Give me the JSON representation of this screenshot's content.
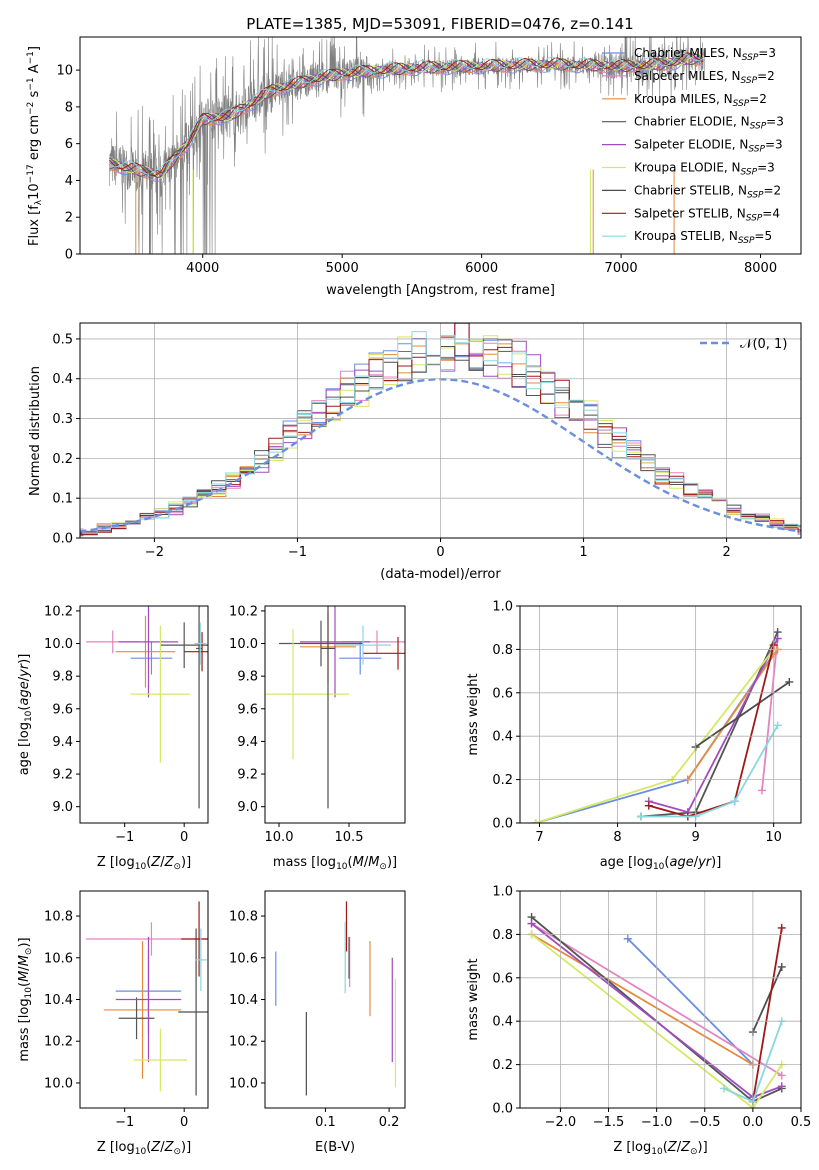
{
  "figure": {
    "title": "PLATE=1385, MJD=53091, FIBERID=0476, z=0.141"
  },
  "colors": {
    "Chabrier MILES": "#6a8ee0",
    "Salpeter MILES": "#e584c0",
    "Kroupa MILES": "#e58a3e",
    "Chabrier ELODIE": "#555555",
    "Salpeter ELODIE": "#a04cc0",
    "Kroupa ELODIE": "#d6e866",
    "Chabrier STELIB": "#4d4d4d",
    "Salpeter STELIB": "#a01818",
    "Kroupa STELIB": "#88d8e0",
    "data": "#808080",
    "normal": "#6a8ee0"
  },
  "chart_data": [
    {
      "id": "spectrum",
      "type": "line",
      "title": "PLATE=1385, MJD=53091, FIBERID=0476, z=0.141",
      "xlabel": "wavelength [Angstrom, rest frame]",
      "ylabel": "Flux [f_λ10^-17 erg cm^-2 s^-1 A^-1]",
      "xlim": [
        3120,
        8290
      ],
      "ylim": [
        0,
        11.8
      ],
      "xticks": [
        4000,
        5000,
        6000,
        7000,
        8000
      ],
      "yticks": [
        0,
        2,
        4,
        6,
        8,
        10
      ],
      "legend_position": "top-right",
      "legend": [
        {
          "name": "Chabrier MILES",
          "nssp": "3"
        },
        {
          "name": "Salpeter MILES",
          "nssp": "2"
        },
        {
          "name": "Kroupa MILES",
          "nssp": "2"
        },
        {
          "name": "Chabrier ELODIE",
          "nssp": "3"
        },
        {
          "name": "Salpeter ELODIE",
          "nssp": "3"
        },
        {
          "name": "Kroupa ELODIE",
          "nssp": "3"
        },
        {
          "name": "Chabrier STELIB",
          "nssp": "2"
        },
        {
          "name": "Salpeter STELIB",
          "nssp": "4"
        },
        {
          "name": "Kroupa STELIB",
          "nssp": "5"
        }
      ],
      "continuum": [
        [
          3330,
          4.9
        ],
        [
          3500,
          4.6
        ],
        [
          3700,
          4.3
        ],
        [
          3900,
          6.1
        ],
        [
          4000,
          7.3
        ],
        [
          4200,
          7.5
        ],
        [
          4500,
          8.9
        ],
        [
          4800,
          9.5
        ],
        [
          5000,
          9.8
        ],
        [
          5500,
          10.1
        ],
        [
          6000,
          10.2
        ],
        [
          6500,
          10.3
        ],
        [
          7000,
          10.2
        ],
        [
          7300,
          10.3
        ],
        [
          7500,
          10.6
        ]
      ]
    },
    {
      "id": "residuals",
      "type": "line",
      "xlabel": "(data-model)/error",
      "ylabel": "Normed distribution",
      "xlim": [
        -2.52,
        2.52
      ],
      "ylim": [
        0,
        0.54
      ],
      "xticks": [
        -2,
        -1,
        0,
        1,
        2
      ],
      "yticks": [
        0.0,
        0.1,
        0.2,
        0.3,
        0.4,
        0.5
      ],
      "grid": true,
      "legend_position": "top-right",
      "legend": [
        "𝒩(0, 1)"
      ],
      "normal_curve": {
        "mean": 0,
        "sigma": 1
      }
    },
    {
      "id": "age-vs-Z",
      "type": "scatter",
      "xlabel": "Z [log10(Z/Z⊙)]",
      "ylabel": "age [log10(age/yr)]",
      "xlim": [
        -1.75,
        0.4
      ],
      "ylim": [
        8.9,
        10.23
      ],
      "xticks": [
        -1,
        0
      ],
      "yticks": [
        9.0,
        9.2,
        9.4,
        9.6,
        9.8,
        10.0,
        10.2
      ],
      "points": [
        {
          "series": "Chabrier MILES",
          "x": -0.55,
          "y": 9.91,
          "xerr": 0.35,
          "yerr": 0.1
        },
        {
          "series": "Salpeter MILES",
          "x": -1.2,
          "y": 10.01,
          "xerr": 0.45,
          "yerr": 0.07
        },
        {
          "series": "Kroupa MILES",
          "x": -0.65,
          "y": 9.95,
          "xerr": 0.5,
          "yerr": 0.22
        },
        {
          "series": "Chabrier ELODIE",
          "x": 0.0,
          "y": 9.99,
          "xerr": 0.4,
          "yerr": 0.14
        },
        {
          "series": "Salpeter ELODIE",
          "x": -0.6,
          "y": 10.01,
          "xerr": 0.5,
          "yerr": 0.34
        },
        {
          "series": "Kroupa ELODIE",
          "x": -0.4,
          "y": 9.69,
          "xerr": 0.5,
          "yerr": 0.42
        },
        {
          "series": "Chabrier STELIB",
          "x": 0.25,
          "y": 9.97,
          "xerr": 0.05,
          "yerr": 0.98
        },
        {
          "series": "Salpeter STELIB",
          "x": 0.3,
          "y": 9.95,
          "xerr": 0.3,
          "yerr": 0.12
        },
        {
          "series": "Kroupa STELIB",
          "x": 0.27,
          "y": 10.0,
          "xerr": 0.1,
          "yerr": 0.13
        }
      ]
    },
    {
      "id": "age-vs-mass",
      "type": "scatter",
      "xlabel": "mass [log10(M/M⊙)]",
      "xlim": [
        9.9,
        10.9
      ],
      "ylim": [
        8.9,
        10.23
      ],
      "xticks": [
        10.0,
        10.5
      ],
      "yticks": [
        9.0,
        9.2,
        9.4,
        9.6,
        9.8,
        10.0,
        10.2
      ],
      "points": [
        {
          "series": "Chabrier MILES",
          "x": 10.58,
          "y": 9.91,
          "xerr": 0.15,
          "yerr": 0.1
        },
        {
          "series": "Salpeter MILES",
          "x": 10.7,
          "y": 10.01,
          "xerr": 0.25,
          "yerr": 0.07
        },
        {
          "series": "Kroupa MILES",
          "x": 10.35,
          "y": 9.98,
          "xerr": 0.2,
          "yerr": 0.22
        },
        {
          "series": "Chabrier ELODIE",
          "x": 10.3,
          "y": 10.0,
          "xerr": 0.3,
          "yerr": 0.14
        },
        {
          "series": "Salpeter ELODIE",
          "x": 10.4,
          "y": 10.01,
          "xerr": 0.25,
          "yerr": 0.34
        },
        {
          "series": "Kroupa ELODIE",
          "x": 10.1,
          "y": 9.69,
          "xerr": 0.4,
          "yerr": 0.4
        },
        {
          "series": "Chabrier STELIB",
          "x": 10.35,
          "y": 9.97,
          "xerr": 0.05,
          "yerr": 0.98
        },
        {
          "series": "Salpeter STELIB",
          "x": 10.85,
          "y": 9.94,
          "xerr": 0.25,
          "yerr": 0.1
        },
        {
          "series": "Kroupa STELIB",
          "x": 10.6,
          "y": 9.99,
          "xerr": 0.2,
          "yerr": 0.12
        }
      ]
    },
    {
      "id": "mass-weight-vs-age",
      "type": "line",
      "xlabel": "age [log10(age/yr)]",
      "ylabel": "mass weight",
      "xlim": [
        6.75,
        10.35
      ],
      "ylim": [
        0,
        1.0
      ],
      "xticks": [
        7,
        8,
        9,
        10
      ],
      "yticks": [
        0.0,
        0.2,
        0.4,
        0.6,
        0.8,
        1.0
      ],
      "grid": true,
      "series": [
        {
          "name": "Chabrier MILES",
          "points": [
            [
              6.95,
              0.0
            ],
            [
              8.9,
              0.2
            ],
            [
              10.0,
              0.78
            ]
          ]
        },
        {
          "name": "Salpeter MILES",
          "points": [
            [
              9.85,
              0.15
            ],
            [
              10.05,
              0.85
            ]
          ]
        },
        {
          "name": "Kroupa MILES",
          "points": [
            [
              8.9,
              0.2
            ],
            [
              10.05,
              0.8
            ]
          ]
        },
        {
          "name": "Chabrier ELODIE",
          "points": [
            [
              8.3,
              0.03
            ],
            [
              9.0,
              0.05
            ],
            [
              10.05,
              0.88
            ]
          ]
        },
        {
          "name": "Salpeter ELODIE",
          "points": [
            [
              8.4,
              0.1
            ],
            [
              8.9,
              0.05
            ],
            [
              10.05,
              0.85
            ]
          ]
        },
        {
          "name": "Kroupa ELODIE",
          "points": [
            [
              6.95,
              0.0
            ],
            [
              8.7,
              0.2
            ],
            [
              10.0,
              0.8
            ]
          ]
        },
        {
          "name": "Chabrier STELIB",
          "points": [
            [
              9.0,
              0.35
            ],
            [
              10.2,
              0.65
            ]
          ]
        },
        {
          "name": "Salpeter STELIB",
          "points": [
            [
              8.4,
              0.08
            ],
            [
              8.9,
              0.03
            ],
            [
              9.5,
              0.1
            ],
            [
              10.0,
              0.82
            ]
          ]
        },
        {
          "name": "Kroupa STELIB",
          "points": [
            [
              8.3,
              0.03
            ],
            [
              9.0,
              0.03
            ],
            [
              9.5,
              0.1
            ],
            [
              10.05,
              0.45
            ]
          ]
        }
      ]
    },
    {
      "id": "mass-vs-Z",
      "type": "scatter",
      "xlabel": "Z [log10(Z/Z⊙)]",
      "ylabel": "mass [log10(M/M⊙)]",
      "xlim": [
        -1.75,
        0.4
      ],
      "ylim": [
        9.88,
        10.92
      ],
      "xticks": [
        -1,
        0
      ],
      "yticks": [
        10.0,
        10.2,
        10.4,
        10.6,
        10.8
      ],
      "points": [
        {
          "series": "Chabrier MILES",
          "x": -0.6,
          "y": 10.44,
          "xerr": 0.55,
          "yerr": 0.2
        },
        {
          "series": "Salpeter MILES",
          "x": -0.55,
          "y": 10.69,
          "xerr": 1.1,
          "yerr": 0.08
        },
        {
          "series": "Kroupa MILES",
          "x": -0.7,
          "y": 10.35,
          "xerr": 0.65,
          "yerr": 0.33
        },
        {
          "series": "Chabrier ELODIE",
          "x": -0.8,
          "y": 10.31,
          "xerr": 0.3,
          "yerr": 0.1
        },
        {
          "series": "Salpeter ELODIE",
          "x": -0.6,
          "y": 10.4,
          "xerr": 0.55,
          "yerr": 0.3
        },
        {
          "series": "Kroupa ELODIE",
          "x": -0.4,
          "y": 10.11,
          "xerr": 0.45,
          "yerr": 0.15
        },
        {
          "series": "Chabrier STELIB",
          "x": 0.2,
          "y": 10.34,
          "xerr": 0.3,
          "yerr": 0.4
        },
        {
          "series": "Salpeter STELIB",
          "x": 0.25,
          "y": 10.69,
          "xerr": 0.3,
          "yerr": 0.18
        },
        {
          "series": "Kroupa STELIB",
          "x": 0.28,
          "y": 10.59,
          "xerr": 0.1,
          "yerr": 0.15
        }
      ]
    },
    {
      "id": "mass-vs-ebv",
      "type": "scatter",
      "xlabel": "E(B-V)",
      "xlim": [
        0.005,
        0.225
      ],
      "ylim": [
        9.88,
        10.92
      ],
      "xticks": [
        0.1,
        0.2
      ],
      "yticks": [
        10.0,
        10.2,
        10.4,
        10.6,
        10.8
      ],
      "points": [
        {
          "series": "Chabrier MILES",
          "x": 0.022,
          "y": 10.5,
          "yerr": 0.13
        },
        {
          "series": "Salpeter MILES",
          "x": 0.138,
          "y": 10.58,
          "yerr": 0.12
        },
        {
          "series": "Kroupa MILES",
          "x": 0.17,
          "y": 10.5,
          "yerr": 0.18
        },
        {
          "series": "Chabrier ELODIE",
          "x": 0.137,
          "y": 10.6,
          "yerr": 0.1
        },
        {
          "series": "Salpeter ELODIE",
          "x": 0.205,
          "y": 10.35,
          "yerr": 0.25
        },
        {
          "series": "Kroupa ELODIE",
          "x": 0.21,
          "y": 10.24,
          "yerr": 0.26
        },
        {
          "series": "Chabrier STELIB",
          "x": 0.07,
          "y": 10.14,
          "yerr": 0.2
        },
        {
          "series": "Salpeter STELIB",
          "x": 0.133,
          "y": 10.75,
          "yerr": 0.12
        },
        {
          "series": "Kroupa STELIB",
          "x": 0.131,
          "y": 10.6,
          "yerr": 0.17
        }
      ]
    },
    {
      "id": "mass-weight-vs-Z",
      "type": "line",
      "xlabel": "Z [log10(Z/Z⊙)]",
      "ylabel": "mass weight",
      "xlim": [
        -2.42,
        0.5
      ],
      "ylim": [
        0,
        1.0
      ],
      "xticks": [
        -2.0,
        -1.5,
        -1.0,
        -0.5,
        0.0,
        0.5
      ],
      "yticks": [
        0.0,
        0.2,
        0.4,
        0.6,
        0.8,
        1.0
      ],
      "grid": true,
      "series": [
        {
          "name": "Chabrier MILES",
          "points": [
            [
              -1.3,
              0.78
            ],
            [
              0.0,
              0.2
            ]
          ]
        },
        {
          "name": "Salpeter MILES",
          "points": [
            [
              -2.3,
              0.85
            ],
            [
              0.3,
              0.15
            ]
          ]
        },
        {
          "name": "Kroupa MILES",
          "points": [
            [
              -2.3,
              0.8
            ],
            [
              0.0,
              0.2
            ]
          ]
        },
        {
          "name": "Chabrier ELODIE",
          "points": [
            [
              -2.3,
              0.88
            ],
            [
              0.0,
              0.03
            ],
            [
              0.3,
              0.09
            ]
          ]
        },
        {
          "name": "Salpeter ELODIE",
          "points": [
            [
              -2.3,
              0.85
            ],
            [
              0.0,
              0.05
            ],
            [
              0.3,
              0.1
            ]
          ]
        },
        {
          "name": "Kroupa ELODIE",
          "points": [
            [
              -2.3,
              0.8
            ],
            [
              0.0,
              0.0
            ],
            [
              0.3,
              0.2
            ]
          ]
        },
        {
          "name": "Chabrier STELIB",
          "points": [
            [
              0.0,
              0.35
            ],
            [
              0.3,
              0.65
            ]
          ]
        },
        {
          "name": "Salpeter STELIB",
          "points": [
            [
              0.0,
              0.03
            ],
            [
              0.3,
              0.83
            ]
          ]
        },
        {
          "name": "Kroupa STELIB",
          "points": [
            [
              -0.3,
              0.09
            ],
            [
              0.0,
              0.03
            ],
            [
              0.3,
              0.4
            ]
          ]
        }
      ]
    }
  ]
}
